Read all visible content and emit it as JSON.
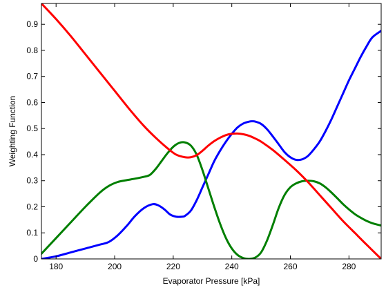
{
  "chart_data": {
    "type": "line",
    "title": "",
    "xlabel": "Evaporator Pressure [kPa]",
    "ylabel": "Weighting Function",
    "xlim": [
      175,
      291
    ],
    "ylim": [
      0,
      0.98
    ],
    "xticks": [
      180,
      200,
      220,
      240,
      260,
      280
    ],
    "yticks": [
      0,
      0.1,
      0.2,
      0.3,
      0.4,
      0.5,
      0.6,
      0.7,
      0.8,
      0.9
    ],
    "grid": false,
    "legend": "none",
    "series": [
      {
        "color": "#0000ff",
        "x": [
          175,
          180,
          185,
          190,
          195,
          198,
          201,
          204,
          207,
          210,
          213,
          215,
          217,
          219,
          221,
          223,
          224,
          226,
          228,
          230,
          232,
          234,
          236,
          238,
          240,
          242,
          244,
          246,
          247,
          248,
          250,
          252,
          254,
          256,
          258,
          260,
          262,
          264,
          266,
          268,
          270,
          272,
          274,
          276,
          278,
          280,
          282,
          284,
          286,
          288,
          291
        ],
        "y": [
          0.0,
          0.01,
          0.025,
          0.04,
          0.055,
          0.065,
          0.09,
          0.125,
          0.165,
          0.195,
          0.21,
          0.205,
          0.19,
          0.17,
          0.162,
          0.162,
          0.165,
          0.185,
          0.225,
          0.275,
          0.325,
          0.375,
          0.415,
          0.45,
          0.48,
          0.505,
          0.52,
          0.527,
          0.528,
          0.527,
          0.518,
          0.498,
          0.47,
          0.44,
          0.41,
          0.39,
          0.38,
          0.382,
          0.395,
          0.42,
          0.45,
          0.49,
          0.535,
          0.585,
          0.635,
          0.685,
          0.73,
          0.775,
          0.815,
          0.85,
          0.875
        ]
      },
      {
        "color": "#007f00",
        "x": [
          175,
          180,
          185,
          190,
          195,
          198,
          201,
          204,
          207,
          210,
          212,
          214,
          216,
          218,
          220,
          222,
          224,
          226,
          228,
          230,
          232,
          234,
          236,
          238,
          240,
          242,
          244,
          246,
          248,
          250,
          252,
          254,
          256,
          258,
          260,
          262,
          264,
          266,
          268,
          270,
          272,
          274,
          276,
          278,
          280,
          282,
          284,
          286,
          288,
          291
        ],
        "y": [
          0.02,
          0.08,
          0.14,
          0.2,
          0.255,
          0.28,
          0.295,
          0.302,
          0.308,
          0.315,
          0.322,
          0.345,
          0.375,
          0.405,
          0.43,
          0.445,
          0.447,
          0.435,
          0.4,
          0.34,
          0.27,
          0.2,
          0.135,
          0.08,
          0.04,
          0.015,
          0.003,
          0.0,
          0.005,
          0.025,
          0.07,
          0.13,
          0.195,
          0.245,
          0.275,
          0.29,
          0.298,
          0.3,
          0.298,
          0.29,
          0.275,
          0.255,
          0.233,
          0.21,
          0.19,
          0.172,
          0.158,
          0.146,
          0.137,
          0.128
        ]
      },
      {
        "color": "#ff0000",
        "x": [
          175,
          180,
          185,
          190,
          195,
          200,
          205,
          210,
          214,
          218,
          221,
          224,
          226,
          228,
          230,
          232,
          234,
          236,
          238,
          240,
          242,
          244,
          246,
          248,
          250,
          254,
          258,
          262,
          266,
          270,
          274,
          278,
          282,
          286,
          291
        ],
        "y": [
          0.98,
          0.92,
          0.855,
          0.785,
          0.715,
          0.645,
          0.575,
          0.51,
          0.465,
          0.425,
          0.4,
          0.39,
          0.39,
          0.398,
          0.415,
          0.435,
          0.452,
          0.465,
          0.475,
          0.48,
          0.481,
          0.478,
          0.472,
          0.462,
          0.45,
          0.418,
          0.38,
          0.34,
          0.295,
          0.245,
          0.195,
          0.145,
          0.1,
          0.055,
          0.0
        ]
      }
    ]
  }
}
